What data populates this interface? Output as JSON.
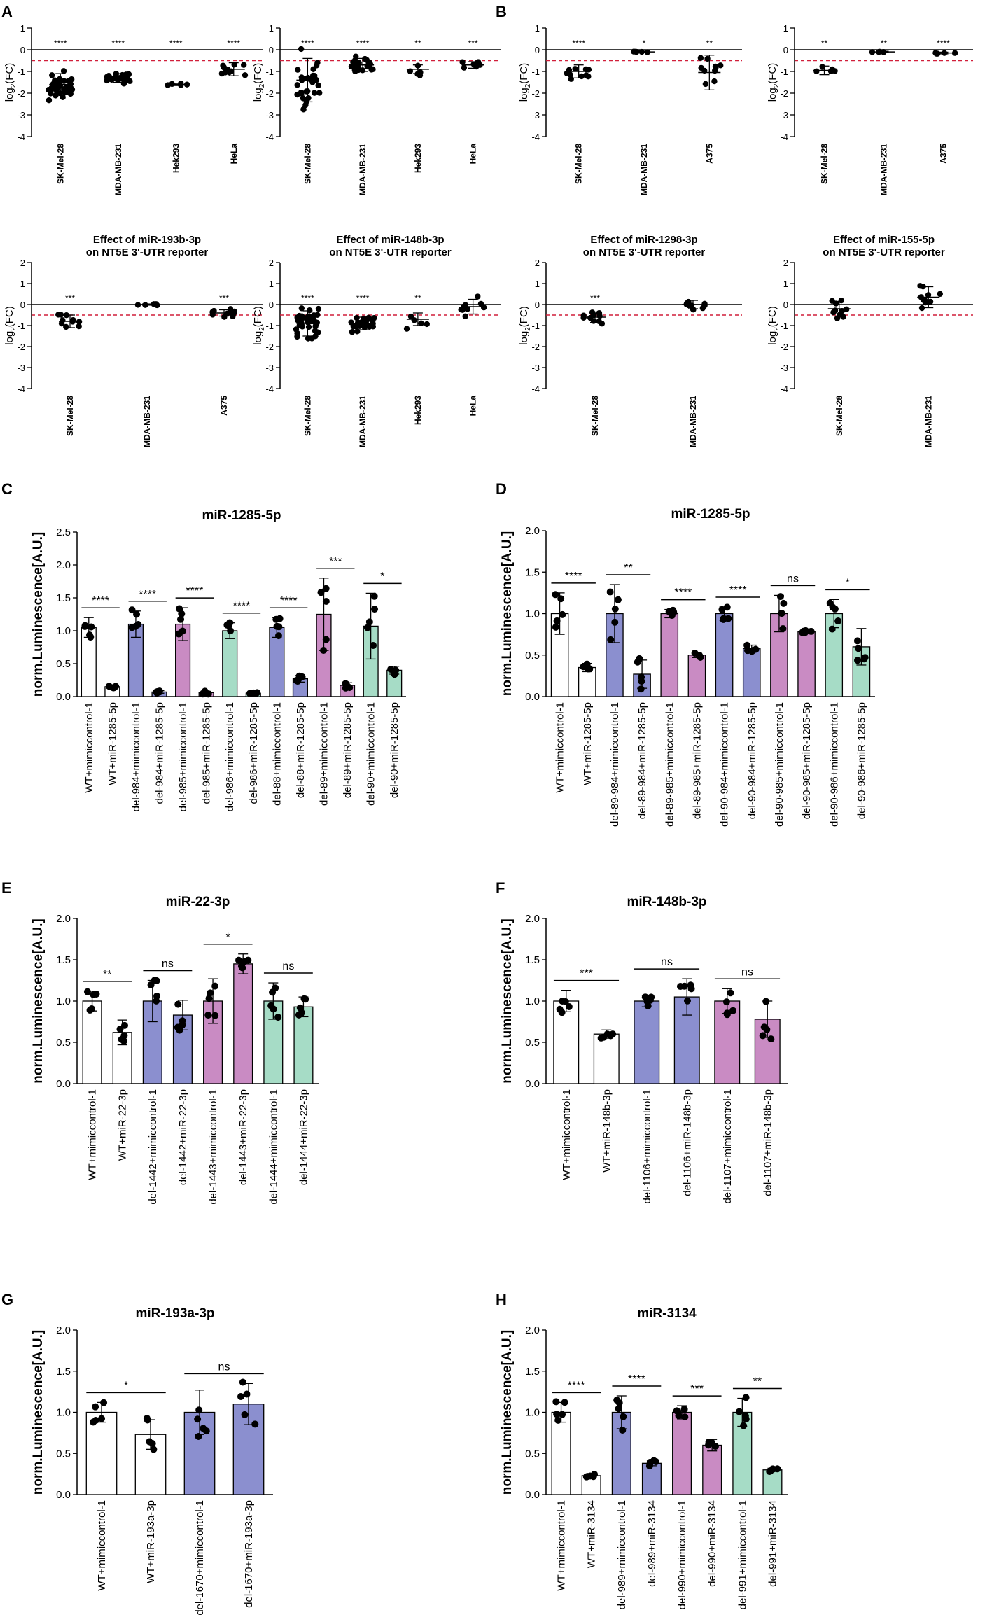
{
  "panel_letters": {
    "A": "A",
    "B": "B",
    "C": "C",
    "D": "D",
    "E": "E",
    "F": "F",
    "G": "G",
    "H": "H"
  },
  "colors": {
    "white": "#ffffff",
    "blue": "#8b8fcf",
    "purple": "#c98bc3",
    "teal": "#a6dcc6",
    "dash": "#d11f3a"
  },
  "chart_data": [
    {
      "id": "A1",
      "type": "scatter",
      "panel": "A",
      "title": [],
      "ylabel": "log2(FC)",
      "ylim": [
        -4,
        1
      ],
      "yticks": [
        "-4",
        "-3",
        "-2",
        "-1",
        "0",
        "1"
      ],
      "categories": [
        "SK-Mel-28",
        "MDA-MB-231",
        "Hek293",
        "HeLa"
      ],
      "means": [
        -1.6,
        -1.3,
        -1.6,
        -0.9
      ],
      "sd": [
        0.5,
        0.2,
        0.05,
        0.3
      ],
      "n": [
        40,
        25,
        5,
        12
      ],
      "significance": [
        "****",
        "****",
        "****",
        "****"
      ],
      "dashed_line": -0.5
    },
    {
      "id": "A2",
      "type": "scatter",
      "panel": "",
      "title": [],
      "ylabel": "log2(FC)",
      "ylim": [
        -4,
        1
      ],
      "yticks": [
        "-4",
        "-3",
        "-2",
        "-1",
        "0",
        "1"
      ],
      "categories": [
        "SK-Mel-28",
        "MDA-MB-231",
        "Hek293",
        "HeLa"
      ],
      "means": [
        -1.4,
        -0.7,
        -0.9,
        -0.7
      ],
      "sd": [
        1.0,
        0.3,
        0.2,
        0.15
      ],
      "n": [
        30,
        22,
        5,
        8
      ],
      "significance": [
        "****",
        "****",
        "**",
        "***"
      ],
      "dashed_line": -0.5
    },
    {
      "id": "B1",
      "type": "scatter",
      "panel": "B",
      "title": [],
      "ylabel": "log2(FC)",
      "ylim": [
        -4,
        1
      ],
      "yticks": [
        "-4",
        "-3",
        "-2",
        "-1",
        "0",
        "1"
      ],
      "categories": [
        "SK-Mel-28",
        "MDA-MB-231",
        "A375"
      ],
      "means": [
        -1.0,
        -0.1,
        -1.05
      ],
      "sd": [
        0.3,
        0.03,
        0.8
      ],
      "n": [
        10,
        5,
        10
      ],
      "significance": [
        "****",
        "*",
        "**"
      ],
      "dashed_line": -0.5
    },
    {
      "id": "B2",
      "type": "scatter",
      "panel": "",
      "title": [],
      "ylabel": "log2(FC)",
      "ylim": [
        -4,
        1
      ],
      "yticks": [
        "-4",
        "-3",
        "-2",
        "-1",
        "0",
        "1"
      ],
      "categories": [
        "SK-Mel-28",
        "MDA-MB-231",
        "A375"
      ],
      "means": [
        -0.95,
        -0.1,
        -0.15
      ],
      "sd": [
        0.2,
        0.03,
        0.04
      ],
      "n": [
        5,
        5,
        5
      ],
      "significance": [
        "**",
        "**",
        "****"
      ],
      "dashed_line": -0.5
    },
    {
      "id": "A3",
      "type": "scatter",
      "panel": "",
      "title": [
        "Effect of miR-193b-3p",
        "on NT5E 3'-UTR reporter"
      ],
      "ylabel": "log2(FC)",
      "ylim": [
        -4,
        2
      ],
      "yticks": [
        "-4",
        "-3",
        "-2",
        "-1",
        "0",
        "1",
        "2"
      ],
      "categories": [
        "SK-Mel-28",
        "MDA-MB-231",
        "A375"
      ],
      "means": [
        -0.8,
        0.0,
        -0.4
      ],
      "sd": [
        0.3,
        0.03,
        0.15
      ],
      "n": [
        10,
        5,
        10
      ],
      "significance": [
        "***",
        "",
        "***"
      ],
      "dashed_line": -0.5
    },
    {
      "id": "A4",
      "type": "scatter",
      "panel": "",
      "title": [
        "Effect of miR-148b-3p",
        "on NT5E 3'-UTR reporter"
      ],
      "ylabel": "log2(FC)",
      "ylim": [
        -4,
        2
      ],
      "yticks": [
        "-4",
        "-3",
        "-2",
        "-1",
        "0",
        "1",
        "2"
      ],
      "categories": [
        "SK-Mel-28",
        "MDA-MB-231",
        "Hek293",
        "HeLa"
      ],
      "means": [
        -0.9,
        -0.9,
        -0.7,
        -0.1
      ],
      "sd": [
        0.6,
        0.3,
        0.3,
        0.35
      ],
      "n": [
        40,
        25,
        5,
        10
      ],
      "significance": [
        "****",
        "****",
        "**",
        ""
      ],
      "dashed_line": -0.5
    },
    {
      "id": "B3",
      "type": "scatter",
      "panel": "",
      "title": [
        "Effect of miR-1298-3p",
        "on NT5E 3'-UTR reporter"
      ],
      "ylabel": "log2(FC)",
      "ylim": [
        -4,
        2
      ],
      "yticks": [
        "-4",
        "-3",
        "-2",
        "-1",
        "0",
        "1",
        "2"
      ],
      "categories": [
        "SK-Mel-28",
        "MDA-MB-231"
      ],
      "means": [
        -0.6,
        0.0
      ],
      "sd": [
        0.25,
        0.2
      ],
      "n": [
        10,
        10
      ],
      "significance": [
        "***",
        ""
      ],
      "dashed_line": -0.5
    },
    {
      "id": "B4",
      "type": "scatter",
      "panel": "",
      "title": [
        "Effect of miR-155-5p",
        "on NT5E 3'-UTR reporter"
      ],
      "ylabel": "log2(FC)",
      "ylim": [
        -4,
        2
      ],
      "yticks": [
        "-4",
        "-3",
        "-2",
        "-1",
        "0",
        "1",
        "2"
      ],
      "categories": [
        "SK-Mel-28",
        "MDA-MB-231"
      ],
      "means": [
        -0.2,
        0.35
      ],
      "sd": [
        0.35,
        0.5
      ],
      "n": [
        10,
        10
      ],
      "significance": [
        "",
        ""
      ],
      "dashed_line": -0.5
    },
    {
      "id": "C",
      "type": "bar",
      "panel": "C",
      "title": "miR-1285-5p",
      "ylabel": "norm.Luminescence[A.U.]",
      "ylim": [
        0,
        2.5
      ],
      "yticks": [
        "0.0",
        "0.5",
        "1.0",
        "1.5",
        "2.0",
        "2.5"
      ],
      "categories": [
        "WT+mimiccontrol-1",
        "WT+miR-1285-5p",
        "del-984+mimiccontrol-1",
        "del-984+miR-1285-5p",
        "del-985+mimiccontrol-1",
        "del-985+miR-1285-5p",
        "del-986+mimiccontrol-1",
        "del-986+miR-1285-5p",
        "del-88+mimiccontrol-1",
        "del-88+miR-1285-5p",
        "del-89+mimiccontrol-1",
        "del-89+miR-1285-5p",
        "del-90+mimiccontrol-1",
        "del-90+miR-1285-5p"
      ],
      "values": [
        1.05,
        0.15,
        1.1,
        0.07,
        1.1,
        0.06,
        1.0,
        0.05,
        1.05,
        0.27,
        1.25,
        0.17,
        1.07,
        0.4
      ],
      "errors": [
        0.15,
        0.02,
        0.2,
        0.02,
        0.25,
        0.02,
        0.12,
        0.01,
        0.15,
        0.05,
        0.55,
        0.04,
        0.5,
        0.06
      ],
      "colors": [
        "white",
        "white",
        "blue",
        "blue",
        "purple",
        "purple",
        "teal",
        "teal",
        "blue",
        "blue",
        "purple",
        "purple",
        "teal",
        "teal"
      ],
      "comparisons": [
        {
          "pair": [
            0,
            1
          ],
          "label": "****"
        },
        {
          "pair": [
            2,
            3
          ],
          "label": "****"
        },
        {
          "pair": [
            4,
            5
          ],
          "label": "****"
        },
        {
          "pair": [
            6,
            7
          ],
          "label": "****"
        },
        {
          "pair": [
            8,
            9
          ],
          "label": "****"
        },
        {
          "pair": [
            10,
            11
          ],
          "label": "***"
        },
        {
          "pair": [
            12,
            13
          ],
          "label": "*"
        }
      ]
    },
    {
      "id": "D",
      "type": "bar",
      "panel": "D",
      "title": "miR-1285-5p",
      "ylabel": "norm.Luminescence[A.U.]",
      "ylim": [
        0,
        2.0
      ],
      "yticks": [
        "0.0",
        "0.5",
        "1.0",
        "1.5",
        "2.0"
      ],
      "categories": [
        "WT+mimiccontrol-1",
        "WT+miR-1285-5p",
        "del-89-984+mimiccontrol-1",
        "del-89-984+miR-1285-5p",
        "del-89-985+mimiccontrol-1",
        "del-89-985+miR-1285-5p",
        "del-90-984+mimiccontrol-1",
        "del-90-984+miR-1285-5p",
        "del-90-985+mimiccontrol-1",
        "del-90-985+miR-1285-5p",
        "del-90-986+mimiccontrol-1",
        "del-90-986+miR-1285-5p"
      ],
      "values": [
        1.0,
        0.35,
        1.0,
        0.27,
        1.0,
        0.5,
        1.0,
        0.58,
        1.0,
        0.78,
        1.0,
        0.6
      ],
      "errors": [
        0.25,
        0.05,
        0.35,
        0.17,
        0.05,
        0.03,
        0.08,
        0.04,
        0.22,
        0.02,
        0.17,
        0.22
      ],
      "colors": [
        "white",
        "white",
        "blue",
        "blue",
        "purple",
        "purple",
        "blue",
        "blue",
        "purple",
        "purple",
        "teal",
        "teal"
      ],
      "comparisons": [
        {
          "pair": [
            0,
            1
          ],
          "label": "****"
        },
        {
          "pair": [
            2,
            3
          ],
          "label": "**"
        },
        {
          "pair": [
            4,
            5
          ],
          "label": "****"
        },
        {
          "pair": [
            6,
            7
          ],
          "label": "****"
        },
        {
          "pair": [
            8,
            9
          ],
          "label": "ns"
        },
        {
          "pair": [
            10,
            11
          ],
          "label": "*"
        }
      ]
    },
    {
      "id": "E",
      "type": "bar",
      "panel": "E",
      "title": "miR-22-3p",
      "ylabel": "norm.Luminescence[A.U.]",
      "ylim": [
        0,
        2.0
      ],
      "yticks": [
        "0.0",
        "0.5",
        "1.0",
        "1.5",
        "2.0"
      ],
      "categories": [
        "WT+mimiccontrol-1",
        "WT+miR-22-3p",
        "del-1442+mimiccontrol-1",
        "del-1442+miR-22-3p",
        "del-1443+mimiccontrol-1",
        "del-1443+miR-22-3p",
        "del-1444+mimiccontrol-1",
        "del-1444+miR-22-3p"
      ],
      "values": [
        1.0,
        0.62,
        1.0,
        0.83,
        1.0,
        1.45,
        1.0,
        0.93
      ],
      "errors": [
        0.12,
        0.15,
        0.25,
        0.18,
        0.27,
        0.12,
        0.22,
        0.12
      ],
      "colors": [
        "white",
        "white",
        "blue",
        "blue",
        "purple",
        "purple",
        "teal",
        "teal"
      ],
      "comparisons": [
        {
          "pair": [
            0,
            1
          ],
          "label": "**"
        },
        {
          "pair": [
            2,
            3
          ],
          "label": "ns"
        },
        {
          "pair": [
            4,
            5
          ],
          "label": "*"
        },
        {
          "pair": [
            6,
            7
          ],
          "label": "ns"
        }
      ]
    },
    {
      "id": "F",
      "type": "bar",
      "panel": "F",
      "title": "miR-148b-3p",
      "ylabel": "norm.Luminescence[A.U.]",
      "ylim": [
        0,
        2.0
      ],
      "yticks": [
        "0.0",
        "0.5",
        "1.0",
        "1.5",
        "2.0"
      ],
      "categories": [
        "WT+mimiccontrol-1",
        "WT+miR-148b-3p",
        "del-1106+mimiccontrol-1",
        "del-1106+miR-148b-3p",
        "del-1107+mimiccontrol-1",
        "del-1107+miR-148b-3p"
      ],
      "values": [
        1.0,
        0.6,
        1.0,
        1.05,
        1.0,
        0.78
      ],
      "errors": [
        0.13,
        0.05,
        0.07,
        0.22,
        0.15,
        0.22
      ],
      "colors": [
        "white",
        "white",
        "blue",
        "blue",
        "purple",
        "purple"
      ],
      "comparisons": [
        {
          "pair": [
            0,
            1
          ],
          "label": "***"
        },
        {
          "pair": [
            2,
            3
          ],
          "label": "ns"
        },
        {
          "pair": [
            4,
            5
          ],
          "label": "ns"
        }
      ]
    },
    {
      "id": "G",
      "type": "bar",
      "panel": "G",
      "title": "miR-193a-3p",
      "ylabel": "norm.Luminescence[A.U.]",
      "ylim": [
        0,
        2.0
      ],
      "yticks": [
        "0.0",
        "0.5",
        "1.0",
        "1.5",
        "2.0"
      ],
      "categories": [
        "WT+mimiccontrol-1",
        "WT+miR-193a-3p",
        "del-1670+mimiccontrol-1",
        "del-1670+miR-193a-3p"
      ],
      "values": [
        1.0,
        0.73,
        1.0,
        1.1
      ],
      "errors": [
        0.12,
        0.18,
        0.27,
        0.25
      ],
      "colors": [
        "white",
        "white",
        "blue",
        "blue"
      ],
      "comparisons": [
        {
          "pair": [
            0,
            1
          ],
          "label": "*"
        },
        {
          "pair": [
            2,
            3
          ],
          "label": "ns"
        }
      ]
    },
    {
      "id": "H",
      "type": "bar",
      "panel": "H",
      "title": "miR-3134",
      "ylabel": "norm.Luminescence[A.U.]",
      "ylim": [
        0,
        2.0
      ],
      "yticks": [
        "0.0",
        "0.5",
        "1.0",
        "1.5",
        "2.0"
      ],
      "categories": [
        "WT+mimiccontrol-1",
        "WT+miR-3134",
        "del-989+mimiccontrol-1",
        "del-989+miR-3134",
        "del-990+mimiccontrol-1",
        "del-990+miR-3134",
        "del-991+mimiccontrol-1",
        "del-991+miR-3134"
      ],
      "values": [
        1.0,
        0.23,
        1.0,
        0.38,
        1.0,
        0.6,
        1.0,
        0.3
      ],
      "errors": [
        0.12,
        0.02,
        0.2,
        0.03,
        0.08,
        0.07,
        0.17,
        0.02
      ],
      "colors": [
        "white",
        "white",
        "blue",
        "blue",
        "purple",
        "purple",
        "teal",
        "teal"
      ],
      "comparisons": [
        {
          "pair": [
            0,
            1
          ],
          "label": "****"
        },
        {
          "pair": [
            2,
            3
          ],
          "label": "****"
        },
        {
          "pair": [
            4,
            5
          ],
          "label": "***"
        },
        {
          "pair": [
            6,
            7
          ],
          "label": "**"
        }
      ]
    }
  ]
}
